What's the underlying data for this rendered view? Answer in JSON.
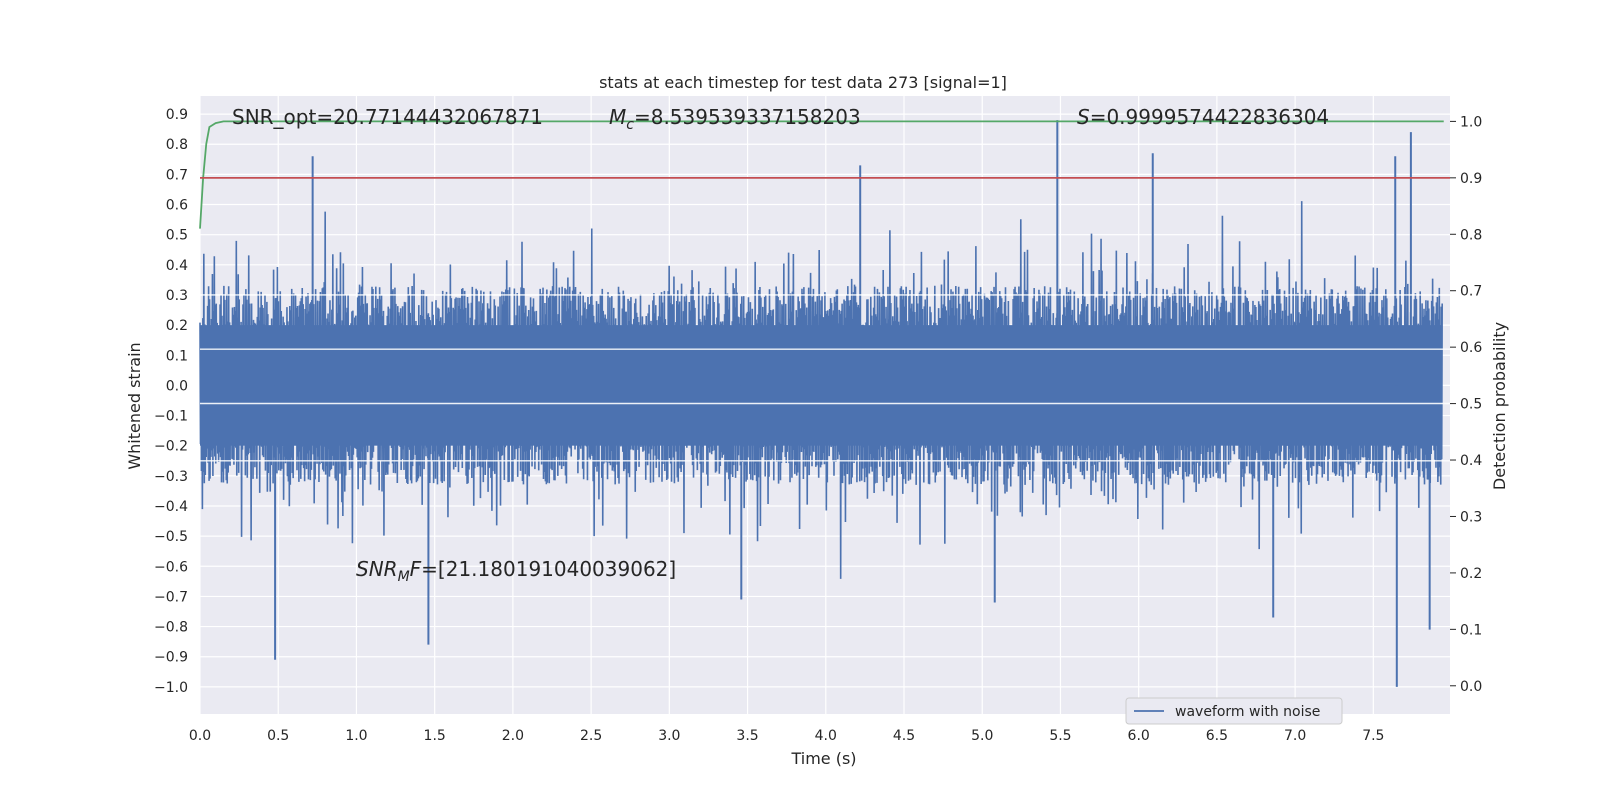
{
  "chart_data": {
    "type": "line",
    "title": "stats at each timestep for test data 273 [signal=1]",
    "xlabel": "Time (s)",
    "ylabel": "Whitened strain",
    "y2label": "Detection probability",
    "xlim": [
      0.0,
      7.99
    ],
    "ylim": [
      -1.09,
      0.96
    ],
    "y2lim": [
      -0.05,
      1.045
    ],
    "xticks": [
      "0.0",
      "0.5",
      "1.0",
      "1.5",
      "2.0",
      "2.5",
      "3.0",
      "3.5",
      "4.0",
      "4.5",
      "5.0",
      "5.5",
      "6.0",
      "6.5",
      "7.0",
      "7.5"
    ],
    "yticks": [
      "0.9",
      "0.8",
      "0.7",
      "0.6",
      "0.5",
      "0.4",
      "0.3",
      "0.2",
      "0.1",
      "0.0",
      "−0.1",
      "−0.2",
      "−0.3",
      "−0.4",
      "−0.5",
      "−0.6",
      "−0.7",
      "−0.8",
      "−0.9",
      "−1.0"
    ],
    "y2ticks": [
      "1.0",
      "0.9",
      "0.8",
      "0.7",
      "0.6",
      "0.5",
      "0.4",
      "0.3",
      "0.2",
      "0.1",
      "0.0"
    ],
    "grid": true,
    "legend_position": "lower-right",
    "annotations": {
      "snr_opt": "SNR_opt=20.77144432067871",
      "mc_symbol": "M",
      "mc_subscript": "c",
      "mc_value": "=8.539539337158203",
      "s_symbol": "S",
      "s_value": "=0.9999574422836304",
      "snr_mf_symbol": "SNR",
      "snr_mf_subscript": "M",
      "snr_mf_tail": "F",
      "snr_mf_value": "=[21.180191040039062]"
    },
    "series": [
      {
        "name": "waveform with noise",
        "axis": "left",
        "color": "#4c72b0",
        "in_legend": true,
        "description": "dense whitened strain noise, typical amplitude +/-0.3, extremes",
        "peaks": [
          {
            "x": 0.72,
            "y": 0.76
          },
          {
            "x": 4.22,
            "y": 0.73
          },
          {
            "x": 5.48,
            "y": 0.88
          },
          {
            "x": 6.09,
            "y": 0.77
          },
          {
            "x": 7.74,
            "y": 0.84
          },
          {
            "x": 7.64,
            "y": 0.76
          },
          {
            "x": 0.48,
            "y": -0.91
          },
          {
            "x": 1.46,
            "y": -0.86
          },
          {
            "x": 7.65,
            "y": -1.0
          },
          {
            "x": 7.86,
            "y": -0.81
          },
          {
            "x": 5.08,
            "y": -0.72
          },
          {
            "x": 3.46,
            "y": -0.71
          },
          {
            "x": 6.86,
            "y": -0.77
          }
        ]
      },
      {
        "name": "detection probability",
        "axis": "right",
        "color": "#55a868",
        "in_legend": false,
        "x": [
          0.0,
          0.02,
          0.04,
          0.06,
          0.1,
          0.15,
          7.95
        ],
        "y": [
          0.81,
          0.9,
          0.96,
          0.99,
          0.997,
          1.0,
          1.0
        ]
      },
      {
        "name": "threshold",
        "axis": "right",
        "color": "#c44e52",
        "in_legend": false,
        "x": [
          0.0,
          7.99
        ],
        "y": [
          0.9,
          0.9
        ]
      }
    ]
  }
}
